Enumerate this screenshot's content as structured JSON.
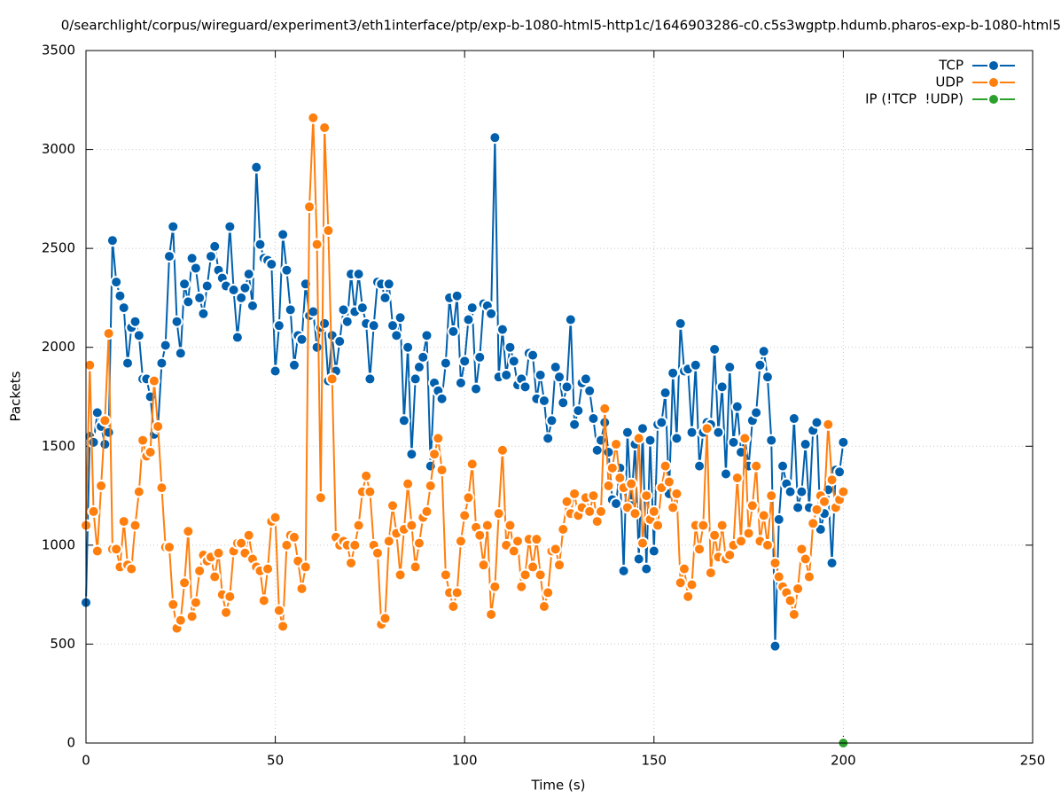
{
  "chart_data": {
    "type": "line",
    "title": "0/searchlight/corpus/wireguard/experiment3/eth1interface/ptp/exp-b-1080-html5-http1c/1646903286-c0.c5s3wgptp.hdumb.pharos-exp-b-1080-html5",
    "xlabel": "Time (s)",
    "ylabel": "Packets",
    "xlim": [
      0,
      250
    ],
    "xticks": [
      0,
      50,
      100,
      150,
      200,
      250
    ],
    "ylim": [
      0,
      3500
    ],
    "yticks": [
      0,
      500,
      1000,
      1500,
      2000,
      2500,
      3000,
      3500
    ],
    "grid": true,
    "legend": "top-right",
    "x": [
      0,
      1,
      2,
      3,
      4,
      5,
      6,
      7,
      8,
      9,
      10,
      11,
      12,
      13,
      14,
      15,
      16,
      17,
      18,
      19,
      20,
      21,
      22,
      23,
      24,
      25,
      26,
      27,
      28,
      29,
      30,
      31,
      32,
      33,
      34,
      35,
      36,
      37,
      38,
      39,
      40,
      41,
      42,
      43,
      44,
      45,
      46,
      47,
      48,
      49,
      50,
      51,
      52,
      53,
      54,
      55,
      56,
      57,
      58,
      59,
      60,
      61,
      62,
      63,
      64,
      65,
      66,
      67,
      68,
      69,
      70,
      71,
      72,
      73,
      74,
      75,
      76,
      77,
      78,
      79,
      80,
      81,
      82,
      83,
      84,
      85,
      86,
      87,
      88,
      89,
      90,
      91,
      92,
      93,
      94,
      95,
      96,
      97,
      98,
      99,
      100,
      101,
      102,
      103,
      104,
      105,
      106,
      107,
      108,
      109,
      110,
      111,
      112,
      113,
      114,
      115,
      116,
      117,
      118,
      119,
      120,
      121,
      122,
      123,
      124,
      125,
      126,
      127,
      128,
      129,
      130,
      131,
      132,
      133,
      134,
      135,
      136,
      137,
      138,
      139,
      140,
      141,
      142,
      143,
      144,
      145,
      146,
      147,
      148,
      149,
      150,
      151,
      152,
      153,
      154,
      155,
      156,
      157,
      158,
      159,
      160,
      161,
      162,
      163,
      164,
      165,
      166,
      167,
      168,
      169,
      170,
      171,
      172,
      173,
      174,
      175,
      176,
      177,
      178,
      179,
      180,
      181,
      182,
      183,
      184,
      185,
      186,
      187,
      188,
      189,
      190,
      191,
      192,
      193,
      194,
      195,
      196,
      197,
      198,
      199,
      200
    ],
    "series": [
      {
        "name": "TCP",
        "color": "#0060ad",
        "values": [
          710,
          1550,
          1520,
          1670,
          1600,
          1510,
          1570,
          2540,
          2330,
          2260,
          2200,
          1920,
          2100,
          2130,
          2060,
          1840,
          1840,
          1750,
          1560,
          1590,
          1920,
          2010,
          2460,
          2610,
          2130,
          1970,
          2320,
          2230,
          2450,
          2400,
          2250,
          2170,
          2310,
          2460,
          2510,
          2390,
          2350,
          2310,
          2610,
          2290,
          2050,
          2250,
          2300,
          2370,
          2210,
          2910,
          2520,
          2450,
          2440,
          2420,
          1880,
          2110,
          2570,
          2390,
          2190,
          1910,
          2060,
          2040,
          2320,
          2160,
          2180,
          2000,
          2100,
          2120,
          1830,
          2060,
          1880,
          2030,
          2190,
          2130,
          2370,
          2180,
          2370,
          2200,
          2120,
          1840,
          2110,
          2330,
          2320,
          2250,
          2320,
          2110,
          2060,
          2150,
          1630,
          2000,
          1460,
          1840,
          1900,
          1950,
          2060,
          1400,
          1820,
          1780,
          1740,
          1920,
          2250,
          2080,
          2260,
          1820,
          1930,
          2140,
          2200,
          1790,
          1950,
          2220,
          2210,
          2170,
          3060,
          1850,
          2090,
          1860,
          2000,
          1930,
          1810,
          1840,
          1800,
          1970,
          1960,
          1740,
          1860,
          1730,
          1540,
          1630,
          1900,
          1850,
          1720,
          1800,
          2140,
          1610,
          1680,
          1820,
          1840,
          1780,
          1640,
          1480,
          1530,
          1620,
          1470,
          1230,
          1210,
          1390,
          870,
          1570,
          1200,
          1510,
          930,
          1590,
          880,
          1530,
          970,
          1610,
          1620,
          1770,
          1260,
          1870,
          1540,
          2120,
          1880,
          1890,
          1570,
          1910,
          1400,
          1570,
          1620,
          1610,
          1990,
          1570,
          1800,
          1360,
          1900,
          1520,
          1700,
          1470,
          1540,
          1400,
          1630,
          1670,
          1910,
          1980,
          1850,
          1530,
          490,
          1130,
          1400,
          1310,
          1270,
          1640,
          1190,
          1270,
          1510,
          1190,
          1580,
          1620,
          1080,
          1160,
          1280,
          910,
          1380,
          1370,
          1520
        ]
      },
      {
        "name": "UDP",
        "color": "#ff7f0e",
        "values": [
          1100,
          1910,
          1170,
          970,
          1300,
          1630,
          2070,
          980,
          980,
          890,
          1120,
          900,
          880,
          1100,
          1270,
          1530,
          1450,
          1470,
          1830,
          1600,
          1290,
          990,
          990,
          700,
          580,
          620,
          810,
          1070,
          640,
          710,
          870,
          950,
          920,
          940,
          840,
          960,
          750,
          660,
          740,
          970,
          1010,
          1010,
          960,
          1050,
          930,
          890,
          870,
          720,
          880,
          1120,
          1140,
          670,
          590,
          1000,
          1050,
          1040,
          920,
          780,
          890,
          2710,
          3160,
          2520,
          1240,
          3110,
          2590,
          1840,
          1040,
          1000,
          1020,
          1000,
          910,
          1000,
          1100,
          1270,
          1350,
          1270,
          1000,
          960,
          600,
          630,
          1020,
          1200,
          1060,
          850,
          1080,
          1310,
          1100,
          890,
          1010,
          1140,
          1170,
          1300,
          1460,
          1540,
          1380,
          850,
          760,
          690,
          760,
          1020,
          1150,
          1240,
          1410,
          1090,
          1050,
          900,
          1100,
          650,
          790,
          1160,
          1480,
          1000,
          1100,
          970,
          1020,
          790,
          850,
          1030,
          890,
          1030,
          850,
          690,
          760,
          970,
          980,
          900,
          1080,
          1220,
          1160,
          1260,
          1150,
          1190,
          1240,
          1170,
          1250,
          1120,
          1170,
          1690,
          1300,
          1390,
          1510,
          1340,
          1290,
          1190,
          1310,
          1160,
          1540,
          1010,
          1250,
          1130,
          1170,
          1100,
          1290,
          1400,
          1320,
          1190,
          1260,
          810,
          880,
          740,
          800,
          1100,
          980,
          1100,
          1590,
          860,
          1050,
          940,
          1100,
          930,
          950,
          1000,
          1340,
          1020,
          1540,
          1060,
          1200,
          1400,
          1020,
          1150,
          1000,
          1250,
          910,
          840,
          790,
          760,
          720,
          650,
          780,
          980,
          930,
          840,
          1110,
          1180,
          1250,
          1220,
          1610,
          1330,
          1190,
          1230,
          1270
        ]
      },
      {
        "name": "IP (!TCP  !UDP)",
        "color": "#2ca02c",
        "x": [
          200
        ],
        "values": [
          0
        ]
      }
    ]
  }
}
